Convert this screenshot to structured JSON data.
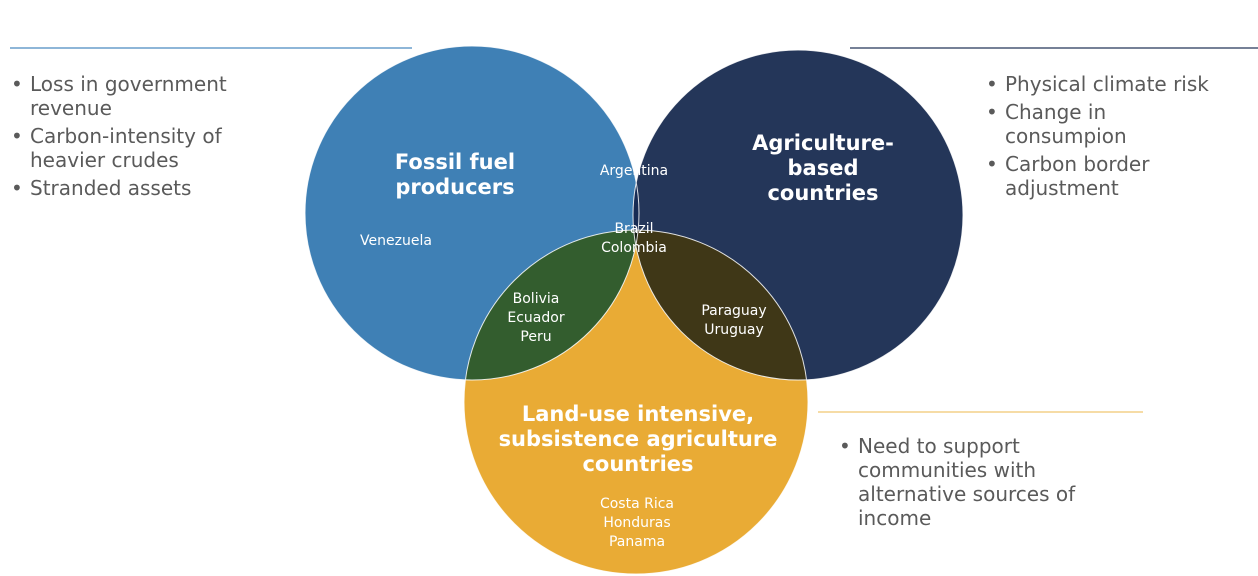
{
  "circles": [
    {
      "title": "Fossil fuel\nproducers",
      "countries": [
        "Venezuela"
      ],
      "bullets": [
        "Loss in government\nrevenue",
        "Carbon-intensity of\nheavier crudes",
        "Stranded assets"
      ]
    },
    {
      "title": "Agriculture-\nbased\ncountries",
      "countries": [],
      "bullets": [
        "Physical climate risk",
        "Change in\nconsumpion",
        "Carbon border\nadjustment"
      ]
    },
    {
      "title": "Land-use intensive,\nsubsistence agriculture\ncountries",
      "countries": [
        "Costa Rica",
        "Honduras",
        "Panama"
      ],
      "bullets": [
        "Need to support\ncommunities with\nalternative sources of\nincome"
      ]
    }
  ],
  "overlaps": [
    {
      "countries": [
        "Argentina"
      ]
    },
    {
      "countries": [
        "Brazil",
        "Colombia"
      ]
    },
    {
      "countries": [
        "Bolivia",
        "Ecuador",
        "Peru"
      ]
    },
    {
      "countries": [
        "Paraguay",
        "Uruguay"
      ]
    }
  ]
}
